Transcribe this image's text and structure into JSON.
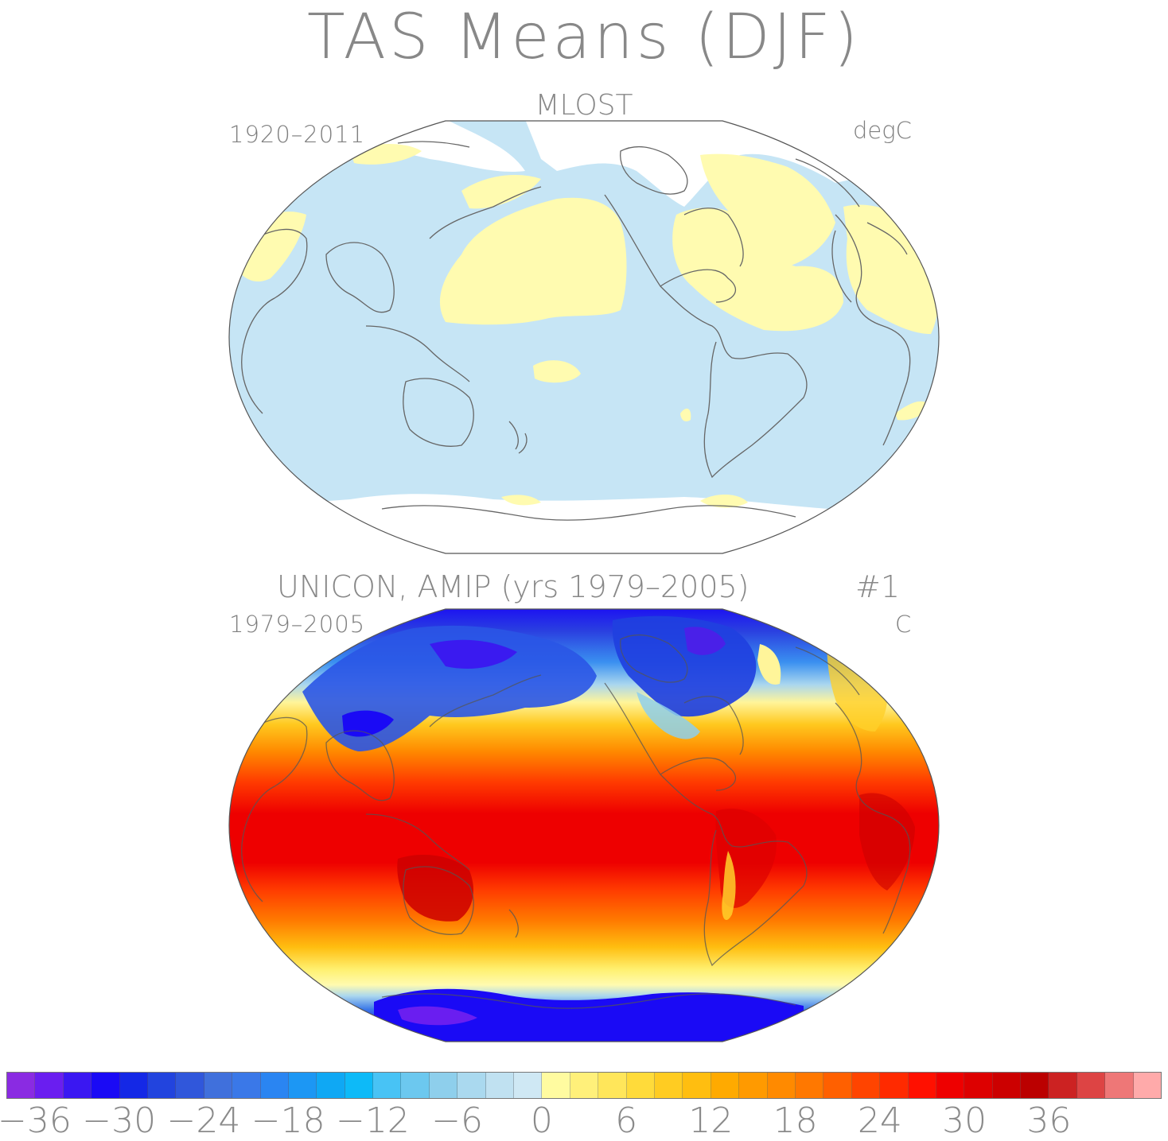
{
  "title": "TAS Means (DJF)",
  "panel_top": {
    "title": "MLOST",
    "period": "1920–2011",
    "units": "degC"
  },
  "panel_bottom": {
    "title": "UNICON, AMIP (yrs 1979–2005)",
    "run": "#1",
    "period": "1979–2005",
    "units": "C"
  },
  "colorbar": {
    "colors": [
      "#8a2be2",
      "#6a1ef0",
      "#3a17f2",
      "#1a0af5",
      "#1428e6",
      "#2244de",
      "#3057db",
      "#4070dc",
      "#3a78e8",
      "#2a85f2",
      "#1c97f4",
      "#0fa8f4",
      "#0dbaf8",
      "#48c3f5",
      "#6cc8ef",
      "#8ecfec",
      "#aad9ef",
      "#c0e1f1",
      "#cfe8f4",
      "#fffba0",
      "#fff07a",
      "#ffe65a",
      "#ffdb3a",
      "#ffcc22",
      "#ffbe10",
      "#ffaa00",
      "#ff9a00",
      "#ff8a00",
      "#ff7800",
      "#ff6000",
      "#ff4400",
      "#ff2a00",
      "#ff1000",
      "#ee0000",
      "#dd0000",
      "#cc0000",
      "#bb0000",
      "#cc2222",
      "#dd4444",
      "#ee7777",
      "#ffaaaa"
    ],
    "ticks": [
      "−36",
      "−30",
      "−24",
      "−18",
      "−12",
      "−6",
      "0",
      "6",
      "12",
      "18",
      "24",
      "30",
      "36"
    ]
  },
  "colors": {
    "ocean_pos": "#fffbb0",
    "ocean_neg": "#c6e5f5",
    "coast": "#666666",
    "cold": "#1a0af5",
    "warm": "#ee0000"
  }
}
